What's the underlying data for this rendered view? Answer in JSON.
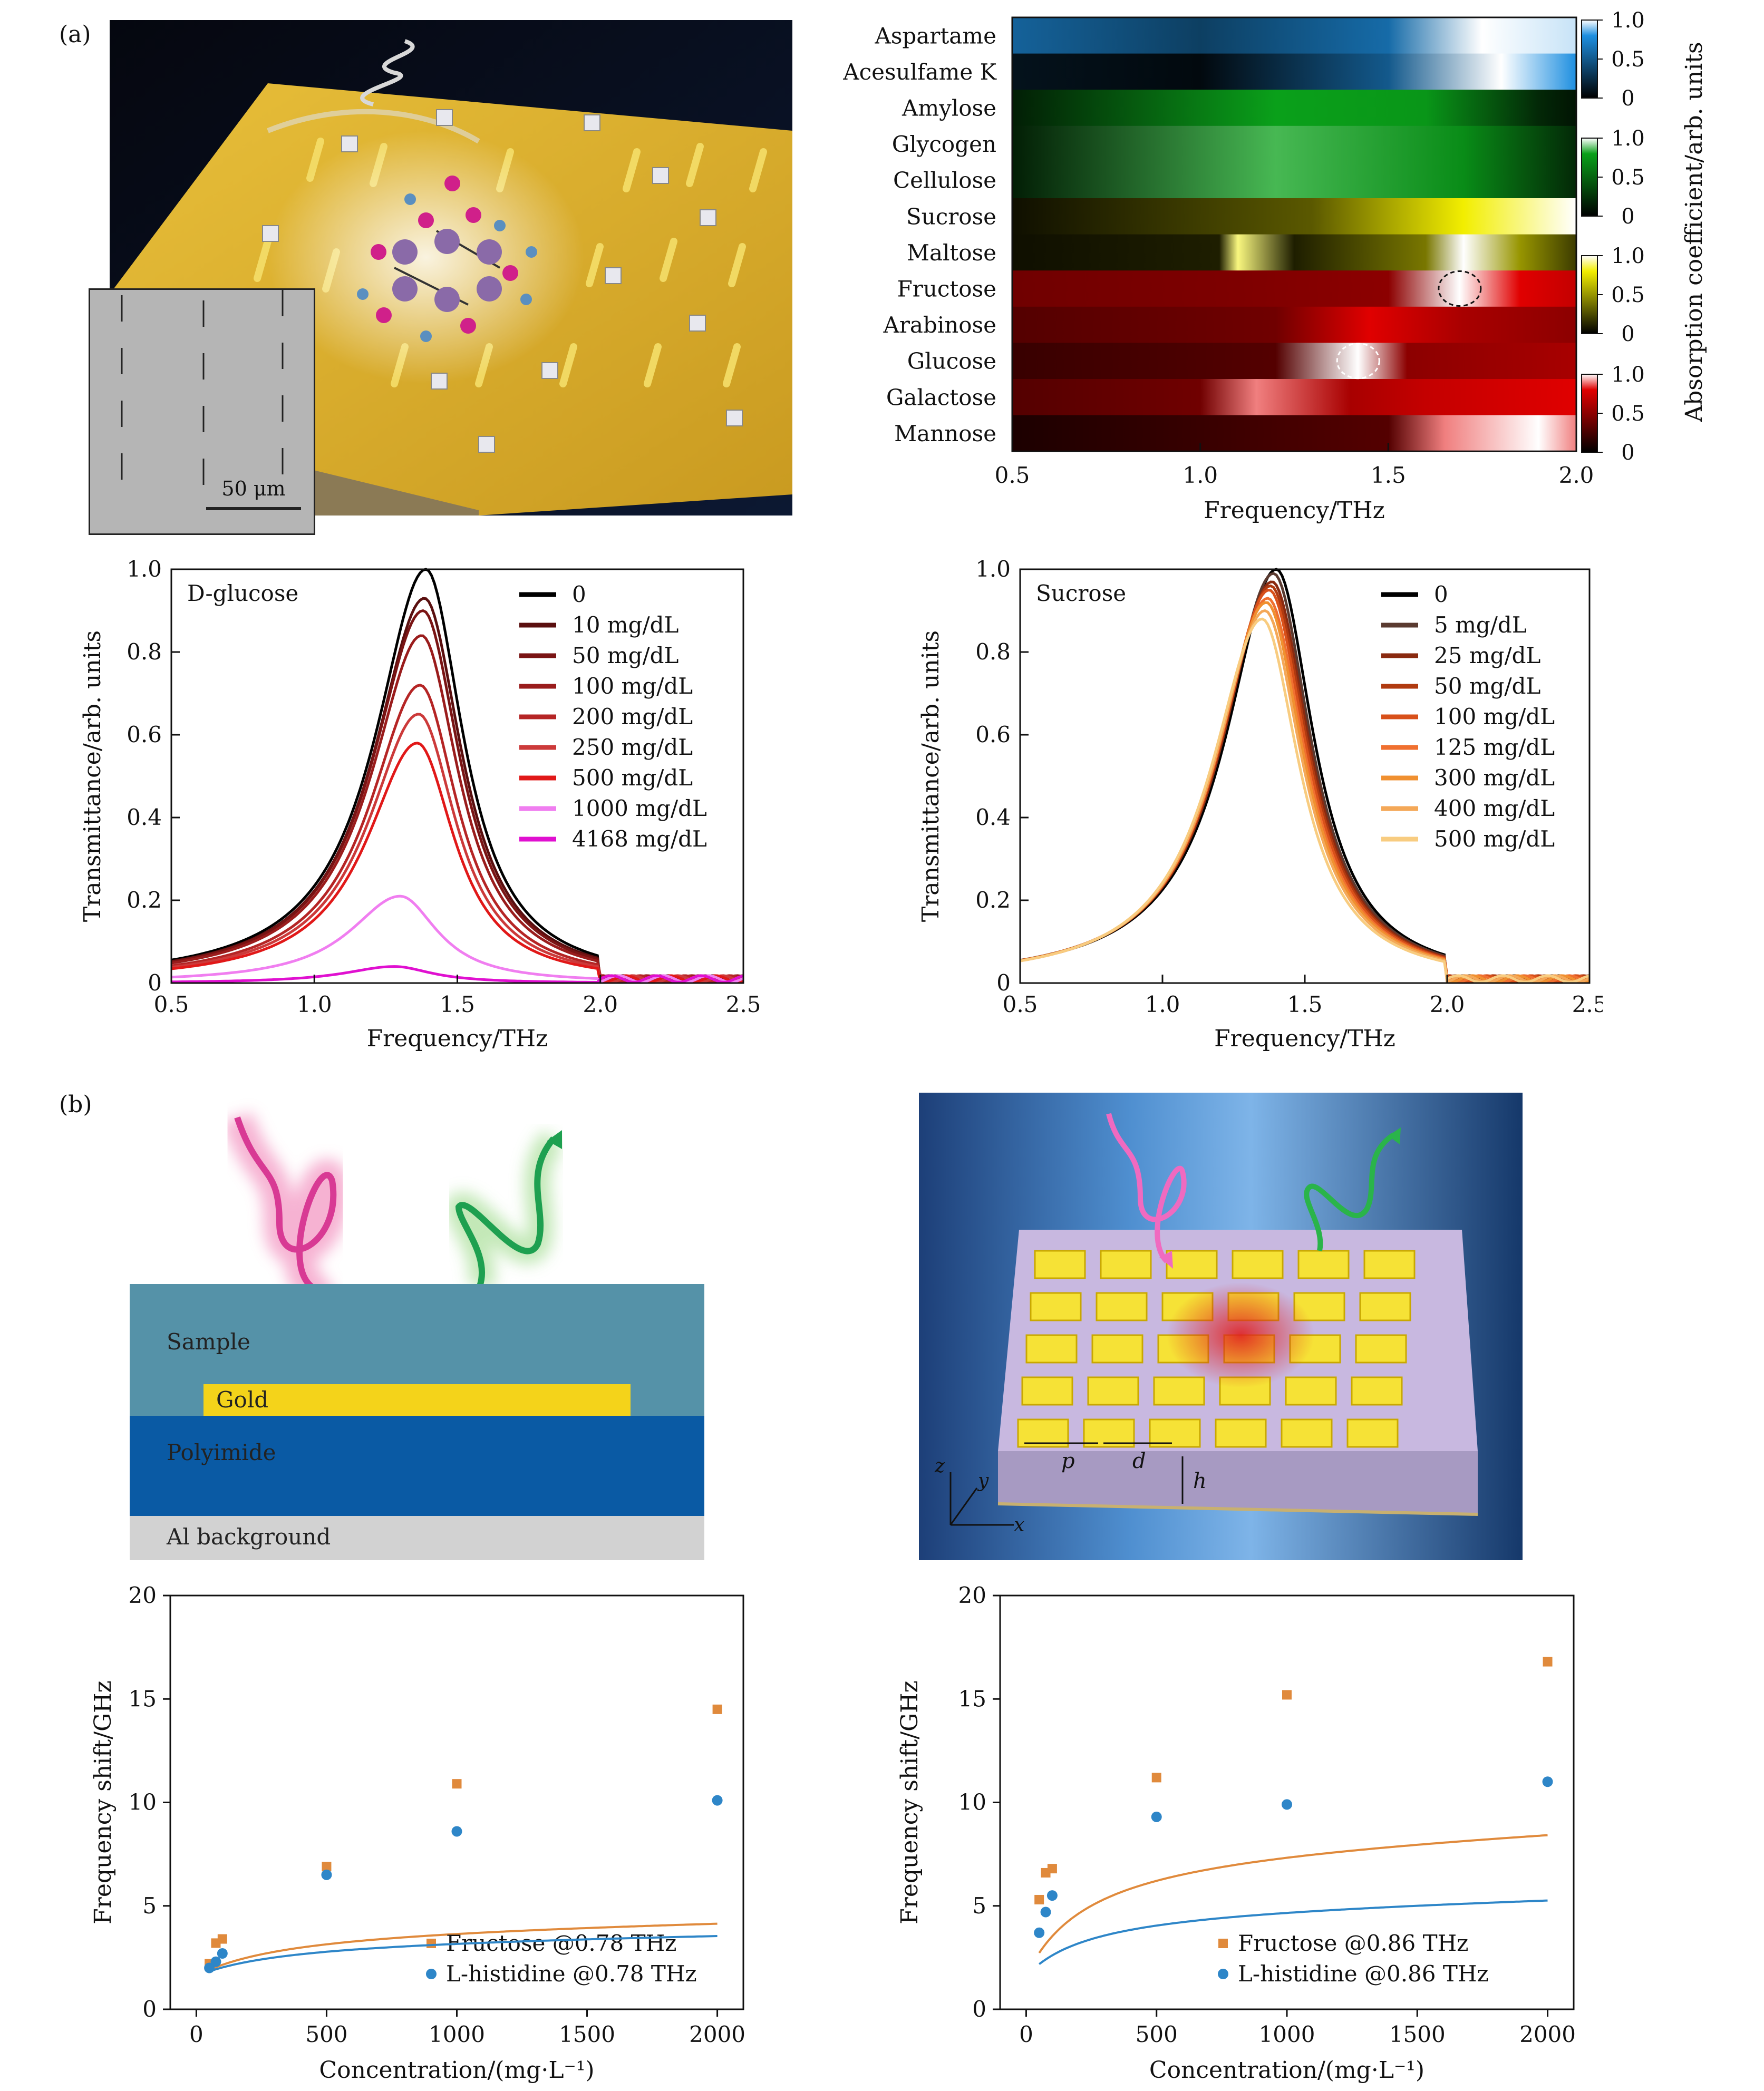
{
  "labels": {
    "a": "(a)",
    "b": "(b)"
  },
  "illustration_a": {
    "scale_text": "50 μm"
  },
  "heatmap": {
    "rows": [
      "Aspartame",
      "Acesulfame K",
      "Amylose",
      "Glycogen",
      "Cellulose",
      "Sucrose",
      "Maltose",
      "Fructose",
      "Arabinose",
      "Glucose",
      "Galactose",
      "Mannose"
    ],
    "xlabel": "Frequency/THz",
    "xticks": [
      "0.5",
      "1.0",
      "1.5",
      "2.0"
    ],
    "colorbar_label": "Absorption coefficient/arb. units",
    "cbar_ticks": [
      "1.0",
      "0.5",
      "0"
    ],
    "colors": {
      "blue": "#1e8fe0",
      "green": "#0aa01a",
      "yellow": "#f2ee00",
      "red": "#e00000"
    }
  },
  "diagram_left": {
    "sample": "Sample",
    "gold": "Gold",
    "polyimide": "Polyimide",
    "al": "Al background"
  },
  "diagram_right": {
    "p": "p",
    "d": "d",
    "h": "h",
    "x": "x",
    "y": "y",
    "z": "z"
  },
  "chart_data": [
    {
      "type": "line",
      "title": "D-glucose",
      "xlabel": "Frequency/THz",
      "ylabel": "Transmittance/arb. units",
      "xlim": [
        0.5,
        2.5
      ],
      "ylim": [
        0,
        1.0
      ],
      "xticks": [
        "0.5",
        "1.0",
        "1.5",
        "2.0",
        "2.5"
      ],
      "yticks": [
        "0",
        "0.2",
        "0.4",
        "0.6",
        "0.8",
        "1.0"
      ],
      "series": [
        {
          "name": "0",
          "peak": 1.0,
          "center": 1.39,
          "color": "#000000"
        },
        {
          "name": "10 mg/dL",
          "peak": 0.93,
          "center": 1.385,
          "color": "#5a0f0f"
        },
        {
          "name": "50 mg/dL",
          "peak": 0.9,
          "center": 1.38,
          "color": "#7a1414"
        },
        {
          "name": "100 mg/dL",
          "peak": 0.84,
          "center": 1.375,
          "color": "#9a1c1c"
        },
        {
          "name": "200 mg/dL",
          "peak": 0.72,
          "center": 1.37,
          "color": "#b52525"
        },
        {
          "name": "250 mg/dL",
          "peak": 0.65,
          "center": 1.365,
          "color": "#cc3a3a"
        },
        {
          "name": "500 mg/dL",
          "peak": 0.58,
          "center": 1.36,
          "color": "#e11818"
        },
        {
          "name": "1000 mg/dL",
          "peak": 0.21,
          "center": 1.3,
          "color": "#f07ef0"
        },
        {
          "name": "4168 mg/dL",
          "peak": 0.04,
          "center": 1.28,
          "color": "#e010d0"
        }
      ]
    },
    {
      "type": "line",
      "title": "Sucrose",
      "xlabel": "Frequency/THz",
      "ylabel": "Transmittance/arb. units",
      "xlim": [
        0.5,
        2.5
      ],
      "ylim": [
        0,
        1.0
      ],
      "xticks": [
        "0.5",
        "1.0",
        "1.5",
        "2.0",
        "2.5"
      ],
      "yticks": [
        "0",
        "0.2",
        "0.4",
        "0.6",
        "0.8",
        "1.0"
      ],
      "series": [
        {
          "name": "0",
          "peak": 1.0,
          "center": 1.4,
          "color": "#000000"
        },
        {
          "name": "5 mg/dL",
          "peak": 0.99,
          "center": 1.39,
          "color": "#5a3a30"
        },
        {
          "name": "25 mg/dL",
          "peak": 0.97,
          "center": 1.385,
          "color": "#8a2a10"
        },
        {
          "name": "50 mg/dL",
          "peak": 0.96,
          "center": 1.38,
          "color": "#b03a10"
        },
        {
          "name": "100 mg/dL",
          "peak": 0.95,
          "center": 1.375,
          "color": "#d8501a"
        },
        {
          "name": "125 mg/dL",
          "peak": 0.93,
          "center": 1.37,
          "color": "#f07030"
        },
        {
          "name": "300 mg/dL",
          "peak": 0.92,
          "center": 1.365,
          "color": "#f09030"
        },
        {
          "name": "400 mg/dL",
          "peak": 0.9,
          "center": 1.36,
          "color": "#f4a858"
        },
        {
          "name": "500 mg/dL",
          "peak": 0.88,
          "center": 1.35,
          "color": "#f8cc80"
        }
      ]
    },
    {
      "type": "scatter",
      "xlabel": "Concentration/(mg·L⁻¹)",
      "ylabel": "Frequency shift/GHz",
      "xlim": [
        -100,
        2100
      ],
      "ylim": [
        0,
        20
      ],
      "xticks": [
        "0",
        "500",
        "1000",
        "1500",
        "2000"
      ],
      "yticks": [
        "0",
        "5",
        "10",
        "15",
        "20"
      ],
      "series": [
        {
          "name": "Fructose @0.78 THz",
          "color": "#e08a3c",
          "marker": "square",
          "x": [
            50,
            75,
            100,
            500,
            1000,
            2000
          ],
          "y": [
            2.2,
            3.2,
            3.4,
            6.9,
            10.9,
            14.5
          ],
          "fit": {
            "a": 13.2,
            "b": 0.000522,
            "c": 0.00265
          }
        },
        {
          "name": "L-histidine @0.78 THz",
          "color": "#2e86c8",
          "marker": "circle",
          "x": [
            50,
            75,
            100,
            500,
            1000,
            2000
          ],
          "y": [
            2.0,
            2.3,
            2.7,
            6.5,
            8.6,
            10.1
          ],
          "fit": {
            "a": 10.2,
            "b": 0.00052,
            "c": 0.00267
          }
        }
      ]
    },
    {
      "type": "scatter",
      "xlabel": "Concentration/(mg·L⁻¹)",
      "ylabel": "Frequency shift/GHz",
      "xlim": [
        -100,
        2100
      ],
      "ylim": [
        0,
        20
      ],
      "xticks": [
        "0",
        "500",
        "1000",
        "1500",
        "2000"
      ],
      "yticks": [
        "0",
        "5",
        "10",
        "15",
        "20"
      ],
      "series": [
        {
          "name": "Fructose @0.86 THz",
          "color": "#e08a3c",
          "marker": "square",
          "x": [
            50,
            75,
            100,
            500,
            1000,
            2000
          ],
          "y": [
            5.3,
            6.6,
            6.8,
            11.2,
            15.2,
            16.8
          ],
          "fit": {
            "a": 15.9,
            "b": 0.0017,
            "c": 0.0041
          }
        },
        {
          "name": "L-histidine @0.86 THz",
          "color": "#2e86c8",
          "marker": "circle",
          "x": [
            50,
            75,
            100,
            500,
            1000,
            2000
          ],
          "y": [
            3.7,
            4.7,
            5.5,
            9.3,
            9.9,
            11.0
          ],
          "fit": {
            "a": 11.1,
            "b": 0.00125,
            "c": 0.0039
          }
        }
      ]
    }
  ]
}
